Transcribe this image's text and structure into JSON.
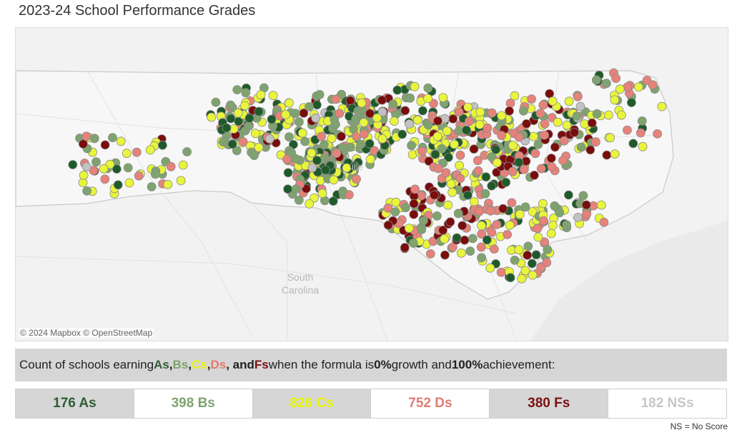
{
  "title": "2023-24 School Performance Grades",
  "map": {
    "attribution": "© 2024 Mapbox  © OpenStreetMap",
    "labels": {
      "south": "South",
      "carolina": "Carolina"
    },
    "colors": {
      "A": "#1f5a2a",
      "B": "#7fa36e",
      "C": "#e8f53a",
      "D": "#e6827a",
      "F": "#7a0c0c",
      "NS": "#c2c2c2"
    }
  },
  "banner": {
    "pre": "Count of schools earning ",
    "a": "As",
    "sep1": ", ",
    "b": "Bs",
    "sep2": ", ",
    "c": "Cs",
    "sep3": ", ",
    "d": "Ds",
    "and": ", and ",
    "f": "Fs",
    "mid": " when the formula is ",
    "growth": "0%",
    "mid2": " growth and ",
    "achievement": "100%",
    "post": " achievement:"
  },
  "counts": [
    {
      "label": "176 As",
      "color": "#2e5e34",
      "bg": "gray"
    },
    {
      "label": "398 Bs",
      "color": "#7fa36e",
      "bg": "white"
    },
    {
      "label": "826 Cs",
      "color": "#e6f500",
      "bg": "gray"
    },
    {
      "label": "752 Ds",
      "color": "#e07c72",
      "bg": "white"
    },
    {
      "label": "380 Fs",
      "color": "#7a1010",
      "bg": "gray"
    },
    {
      "label": "182 NSs",
      "color": "#c8c8c8",
      "bg": "white"
    }
  ],
  "note": "NS = No Score"
}
